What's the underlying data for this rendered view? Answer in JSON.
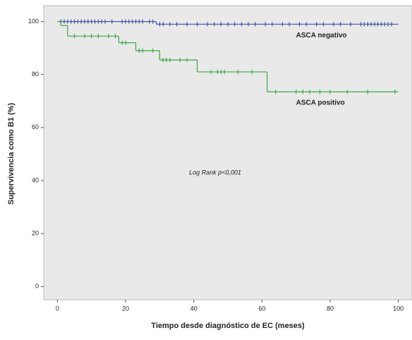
{
  "chart_data": {
    "type": "kaplan-meier",
    "xlabel": "Tiempo desde diagnóstico de EC (meses)",
    "ylabel": "Supervivencia como B1 (%)",
    "annotation": "Log Rank p<0,001",
    "xlim": [
      -4,
      104
    ],
    "ylim": [
      -5,
      106
    ],
    "xticks": [
      0,
      20,
      40,
      60,
      80,
      100
    ],
    "yticks": [
      0,
      20,
      40,
      60,
      80,
      100
    ],
    "grid": false,
    "series": [
      {
        "name": "ASCA negativo",
        "color": "#3a4fa8",
        "x": [
          0,
          29,
          100
        ],
        "values": [
          100,
          99,
          99
        ],
        "censored": {
          "x": [
            1,
            2,
            3,
            4,
            5,
            6,
            7,
            8,
            9,
            10,
            11,
            12,
            13,
            14,
            16,
            19,
            20,
            21,
            22,
            23,
            24,
            25,
            27,
            28,
            30,
            31,
            33,
            35,
            38,
            41,
            44,
            46,
            48,
            50,
            52,
            54,
            56,
            58,
            61,
            63,
            66,
            68,
            71,
            73,
            76,
            78,
            81,
            83,
            86,
            89,
            90,
            91,
            92,
            93,
            94,
            95,
            96,
            97,
            98
          ],
          "values": [
            100,
            100,
            100,
            100,
            100,
            100,
            100,
            100,
            100,
            100,
            100,
            100,
            100,
            100,
            100,
            100,
            100,
            100,
            100,
            100,
            100,
            100,
            100,
            100,
            99,
            99,
            99,
            99,
            99,
            99,
            99,
            99,
            99,
            99,
            99,
            99,
            99,
            99,
            99,
            99,
            99,
            99,
            99,
            99,
            99,
            99,
            99,
            99,
            99,
            99,
            99,
            99,
            99,
            99,
            99,
            99,
            99,
            99,
            99
          ]
        }
      },
      {
        "name": "ASCA positivo",
        "color": "#3aa845",
        "x": [
          0,
          1,
          3,
          18,
          23,
          30,
          41,
          61.5,
          100
        ],
        "values": [
          100,
          98.5,
          94.5,
          92,
          89,
          85.5,
          81,
          73.5,
          73.5
        ],
        "censored": {
          "x": [
            5,
            8,
            10,
            12,
            15,
            17,
            19,
            20,
            24,
            25,
            28,
            31,
            32,
            33,
            36,
            38,
            45,
            47,
            48,
            49,
            53,
            57,
            64,
            70,
            72,
            74,
            77,
            80,
            85,
            91,
            99
          ],
          "values": [
            94.5,
            94.5,
            94.5,
            94.5,
            94.5,
            94.5,
            92,
            92,
            89,
            89,
            89,
            85.5,
            85.5,
            85.5,
            85.5,
            85.5,
            81,
            81,
            81,
            81,
            81,
            81,
            73.5,
            73.5,
            73.5,
            73.5,
            73.5,
            73.5,
            73.5,
            73.5,
            73.5
          ]
        }
      }
    ]
  }
}
